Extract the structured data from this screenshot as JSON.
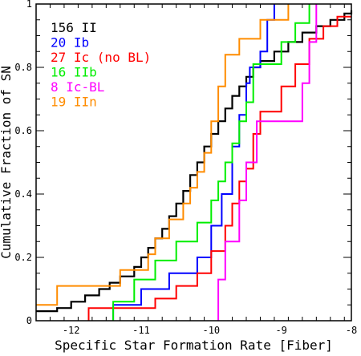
{
  "chart_data": {
    "type": "line",
    "step": true,
    "xlabel": "Specific Star Formation Rate [Fiber]",
    "ylabel": "Cumulative Fraction of SN",
    "xlim": [
      -12.5,
      -8
    ],
    "ylim": [
      0,
      1
    ],
    "xticks": [
      -12,
      -11,
      -10,
      -9,
      -8
    ],
    "yticks": [
      0,
      0.2,
      0.4,
      0.6,
      0.8,
      1
    ],
    "xtick_labels": [
      "-12",
      "-11",
      "-10",
      "-9",
      "-8"
    ],
    "ytick_labels": [
      "0",
      "0.2",
      "0.4",
      "0.6",
      "0.8",
      "1"
    ],
    "legend_position": "top-left",
    "series": [
      {
        "name": "156 II",
        "color": "#000000",
        "points": [
          [
            -12.5,
            0.03
          ],
          [
            -12.2,
            0.04
          ],
          [
            -12.0,
            0.06
          ],
          [
            -11.8,
            0.08
          ],
          [
            -11.6,
            0.1
          ],
          [
            -11.45,
            0.12
          ],
          [
            -11.3,
            0.14
          ],
          [
            -11.1,
            0.17
          ],
          [
            -11.0,
            0.2
          ],
          [
            -10.9,
            0.23
          ],
          [
            -10.8,
            0.26
          ],
          [
            -10.7,
            0.29
          ],
          [
            -10.6,
            0.33
          ],
          [
            -10.5,
            0.37
          ],
          [
            -10.4,
            0.41
          ],
          [
            -10.3,
            0.46
          ],
          [
            -10.2,
            0.5
          ],
          [
            -10.1,
            0.55
          ],
          [
            -10.0,
            0.59
          ],
          [
            -9.9,
            0.63
          ],
          [
            -9.8,
            0.67
          ],
          [
            -9.7,
            0.71
          ],
          [
            -9.6,
            0.74
          ],
          [
            -9.5,
            0.77
          ],
          [
            -9.4,
            0.8
          ],
          [
            -9.3,
            0.82
          ],
          [
            -9.1,
            0.85
          ],
          [
            -8.9,
            0.88
          ],
          [
            -8.7,
            0.91
          ],
          [
            -8.5,
            0.93
          ],
          [
            -8.3,
            0.95
          ],
          [
            -8.1,
            0.97
          ],
          [
            -8.0,
            0.98
          ]
        ]
      },
      {
        "name": "20 Ib",
        "color": "#0000ff",
        "points": [
          [
            -11.4,
            0.0
          ],
          [
            -11.4,
            0.05
          ],
          [
            -11.0,
            0.05
          ],
          [
            -11.0,
            0.1
          ],
          [
            -10.6,
            0.1
          ],
          [
            -10.6,
            0.15
          ],
          [
            -10.2,
            0.15
          ],
          [
            -10.2,
            0.2
          ],
          [
            -10.0,
            0.2
          ],
          [
            -10.0,
            0.3
          ],
          [
            -9.85,
            0.3
          ],
          [
            -9.85,
            0.4
          ],
          [
            -9.7,
            0.4
          ],
          [
            -9.7,
            0.55
          ],
          [
            -9.6,
            0.55
          ],
          [
            -9.6,
            0.65
          ],
          [
            -9.5,
            0.65
          ],
          [
            -9.5,
            0.75
          ],
          [
            -9.45,
            0.75
          ],
          [
            -9.45,
            0.8
          ],
          [
            -9.3,
            0.8
          ],
          [
            -9.3,
            0.85
          ],
          [
            -9.2,
            0.85
          ],
          [
            -9.2,
            0.95
          ],
          [
            -9.1,
            0.95
          ],
          [
            -9.1,
            1.0
          ]
        ]
      },
      {
        "name": "27 Ic (no BL)",
        "color": "#ff0000",
        "points": [
          [
            -11.75,
            0.0
          ],
          [
            -11.75,
            0.04
          ],
          [
            -10.8,
            0.04
          ],
          [
            -10.8,
            0.07
          ],
          [
            -10.5,
            0.07
          ],
          [
            -10.5,
            0.11
          ],
          [
            -10.2,
            0.11
          ],
          [
            -10.2,
            0.15
          ],
          [
            -10.0,
            0.15
          ],
          [
            -10.0,
            0.22
          ],
          [
            -9.8,
            0.22
          ],
          [
            -9.8,
            0.3
          ],
          [
            -9.7,
            0.3
          ],
          [
            -9.7,
            0.37
          ],
          [
            -9.6,
            0.37
          ],
          [
            -9.6,
            0.44
          ],
          [
            -9.5,
            0.44
          ],
          [
            -9.5,
            0.48
          ],
          [
            -9.4,
            0.48
          ],
          [
            -9.4,
            0.59
          ],
          [
            -9.3,
            0.59
          ],
          [
            -9.3,
            0.66
          ],
          [
            -9.0,
            0.66
          ],
          [
            -9.0,
            0.74
          ],
          [
            -8.8,
            0.74
          ],
          [
            -8.8,
            0.81
          ],
          [
            -8.6,
            0.81
          ],
          [
            -8.6,
            0.89
          ],
          [
            -8.4,
            0.89
          ],
          [
            -8.4,
            0.93
          ],
          [
            -8.2,
            0.93
          ],
          [
            -8.2,
            0.96
          ],
          [
            -8.0,
            0.96
          ]
        ]
      },
      {
        "name": "16 IIb",
        "color": "#00ee00",
        "points": [
          [
            -11.4,
            0.0
          ],
          [
            -11.4,
            0.06
          ],
          [
            -11.1,
            0.06
          ],
          [
            -11.1,
            0.13
          ],
          [
            -10.8,
            0.13
          ],
          [
            -10.8,
            0.19
          ],
          [
            -10.5,
            0.19
          ],
          [
            -10.5,
            0.25
          ],
          [
            -10.2,
            0.25
          ],
          [
            -10.2,
            0.31
          ],
          [
            -10.0,
            0.31
          ],
          [
            -10.0,
            0.38
          ],
          [
            -9.9,
            0.38
          ],
          [
            -9.9,
            0.44
          ],
          [
            -9.8,
            0.44
          ],
          [
            -9.8,
            0.5
          ],
          [
            -9.7,
            0.5
          ],
          [
            -9.7,
            0.56
          ],
          [
            -9.6,
            0.56
          ],
          [
            -9.6,
            0.63
          ],
          [
            -9.5,
            0.63
          ],
          [
            -9.5,
            0.69
          ],
          [
            -9.4,
            0.69
          ],
          [
            -9.4,
            0.81
          ],
          [
            -9.0,
            0.81
          ],
          [
            -9.0,
            0.88
          ],
          [
            -8.8,
            0.88
          ],
          [
            -8.8,
            0.94
          ],
          [
            -8.6,
            0.94
          ],
          [
            -8.6,
            1.0
          ]
        ]
      },
      {
        "name": "8 Ic-BL",
        "color": "#ff00ff",
        "points": [
          [
            -9.9,
            0.0
          ],
          [
            -9.9,
            0.13
          ],
          [
            -9.8,
            0.13
          ],
          [
            -9.8,
            0.25
          ],
          [
            -9.6,
            0.25
          ],
          [
            -9.6,
            0.38
          ],
          [
            -9.5,
            0.38
          ],
          [
            -9.5,
            0.5
          ],
          [
            -9.35,
            0.5
          ],
          [
            -9.35,
            0.63
          ],
          [
            -8.7,
            0.63
          ],
          [
            -8.7,
            0.75
          ],
          [
            -8.6,
            0.75
          ],
          [
            -8.6,
            0.88
          ],
          [
            -8.5,
            0.88
          ],
          [
            -8.5,
            1.0
          ]
        ]
      },
      {
        "name": "19 IIn",
        "color": "#ff8c00",
        "points": [
          [
            -12.5,
            0.05
          ],
          [
            -12.2,
            0.05
          ],
          [
            -12.2,
            0.11
          ],
          [
            -11.3,
            0.11
          ],
          [
            -11.3,
            0.16
          ],
          [
            -10.9,
            0.16
          ],
          [
            -10.9,
            0.21
          ],
          [
            -10.8,
            0.21
          ],
          [
            -10.8,
            0.26
          ],
          [
            -10.6,
            0.26
          ],
          [
            -10.6,
            0.32
          ],
          [
            -10.4,
            0.32
          ],
          [
            -10.4,
            0.37
          ],
          [
            -10.3,
            0.37
          ],
          [
            -10.3,
            0.42
          ],
          [
            -10.2,
            0.42
          ],
          [
            -10.2,
            0.47
          ],
          [
            -10.1,
            0.47
          ],
          [
            -10.1,
            0.53
          ],
          [
            -10.0,
            0.53
          ],
          [
            -10.0,
            0.63
          ],
          [
            -9.9,
            0.63
          ],
          [
            -9.9,
            0.74
          ],
          [
            -9.8,
            0.74
          ],
          [
            -9.8,
            0.84
          ],
          [
            -9.6,
            0.84
          ],
          [
            -9.6,
            0.89
          ],
          [
            -9.3,
            0.89
          ],
          [
            -9.3,
            0.95
          ],
          [
            -8.9,
            0.95
          ],
          [
            -8.9,
            1.0
          ]
        ]
      }
    ]
  }
}
